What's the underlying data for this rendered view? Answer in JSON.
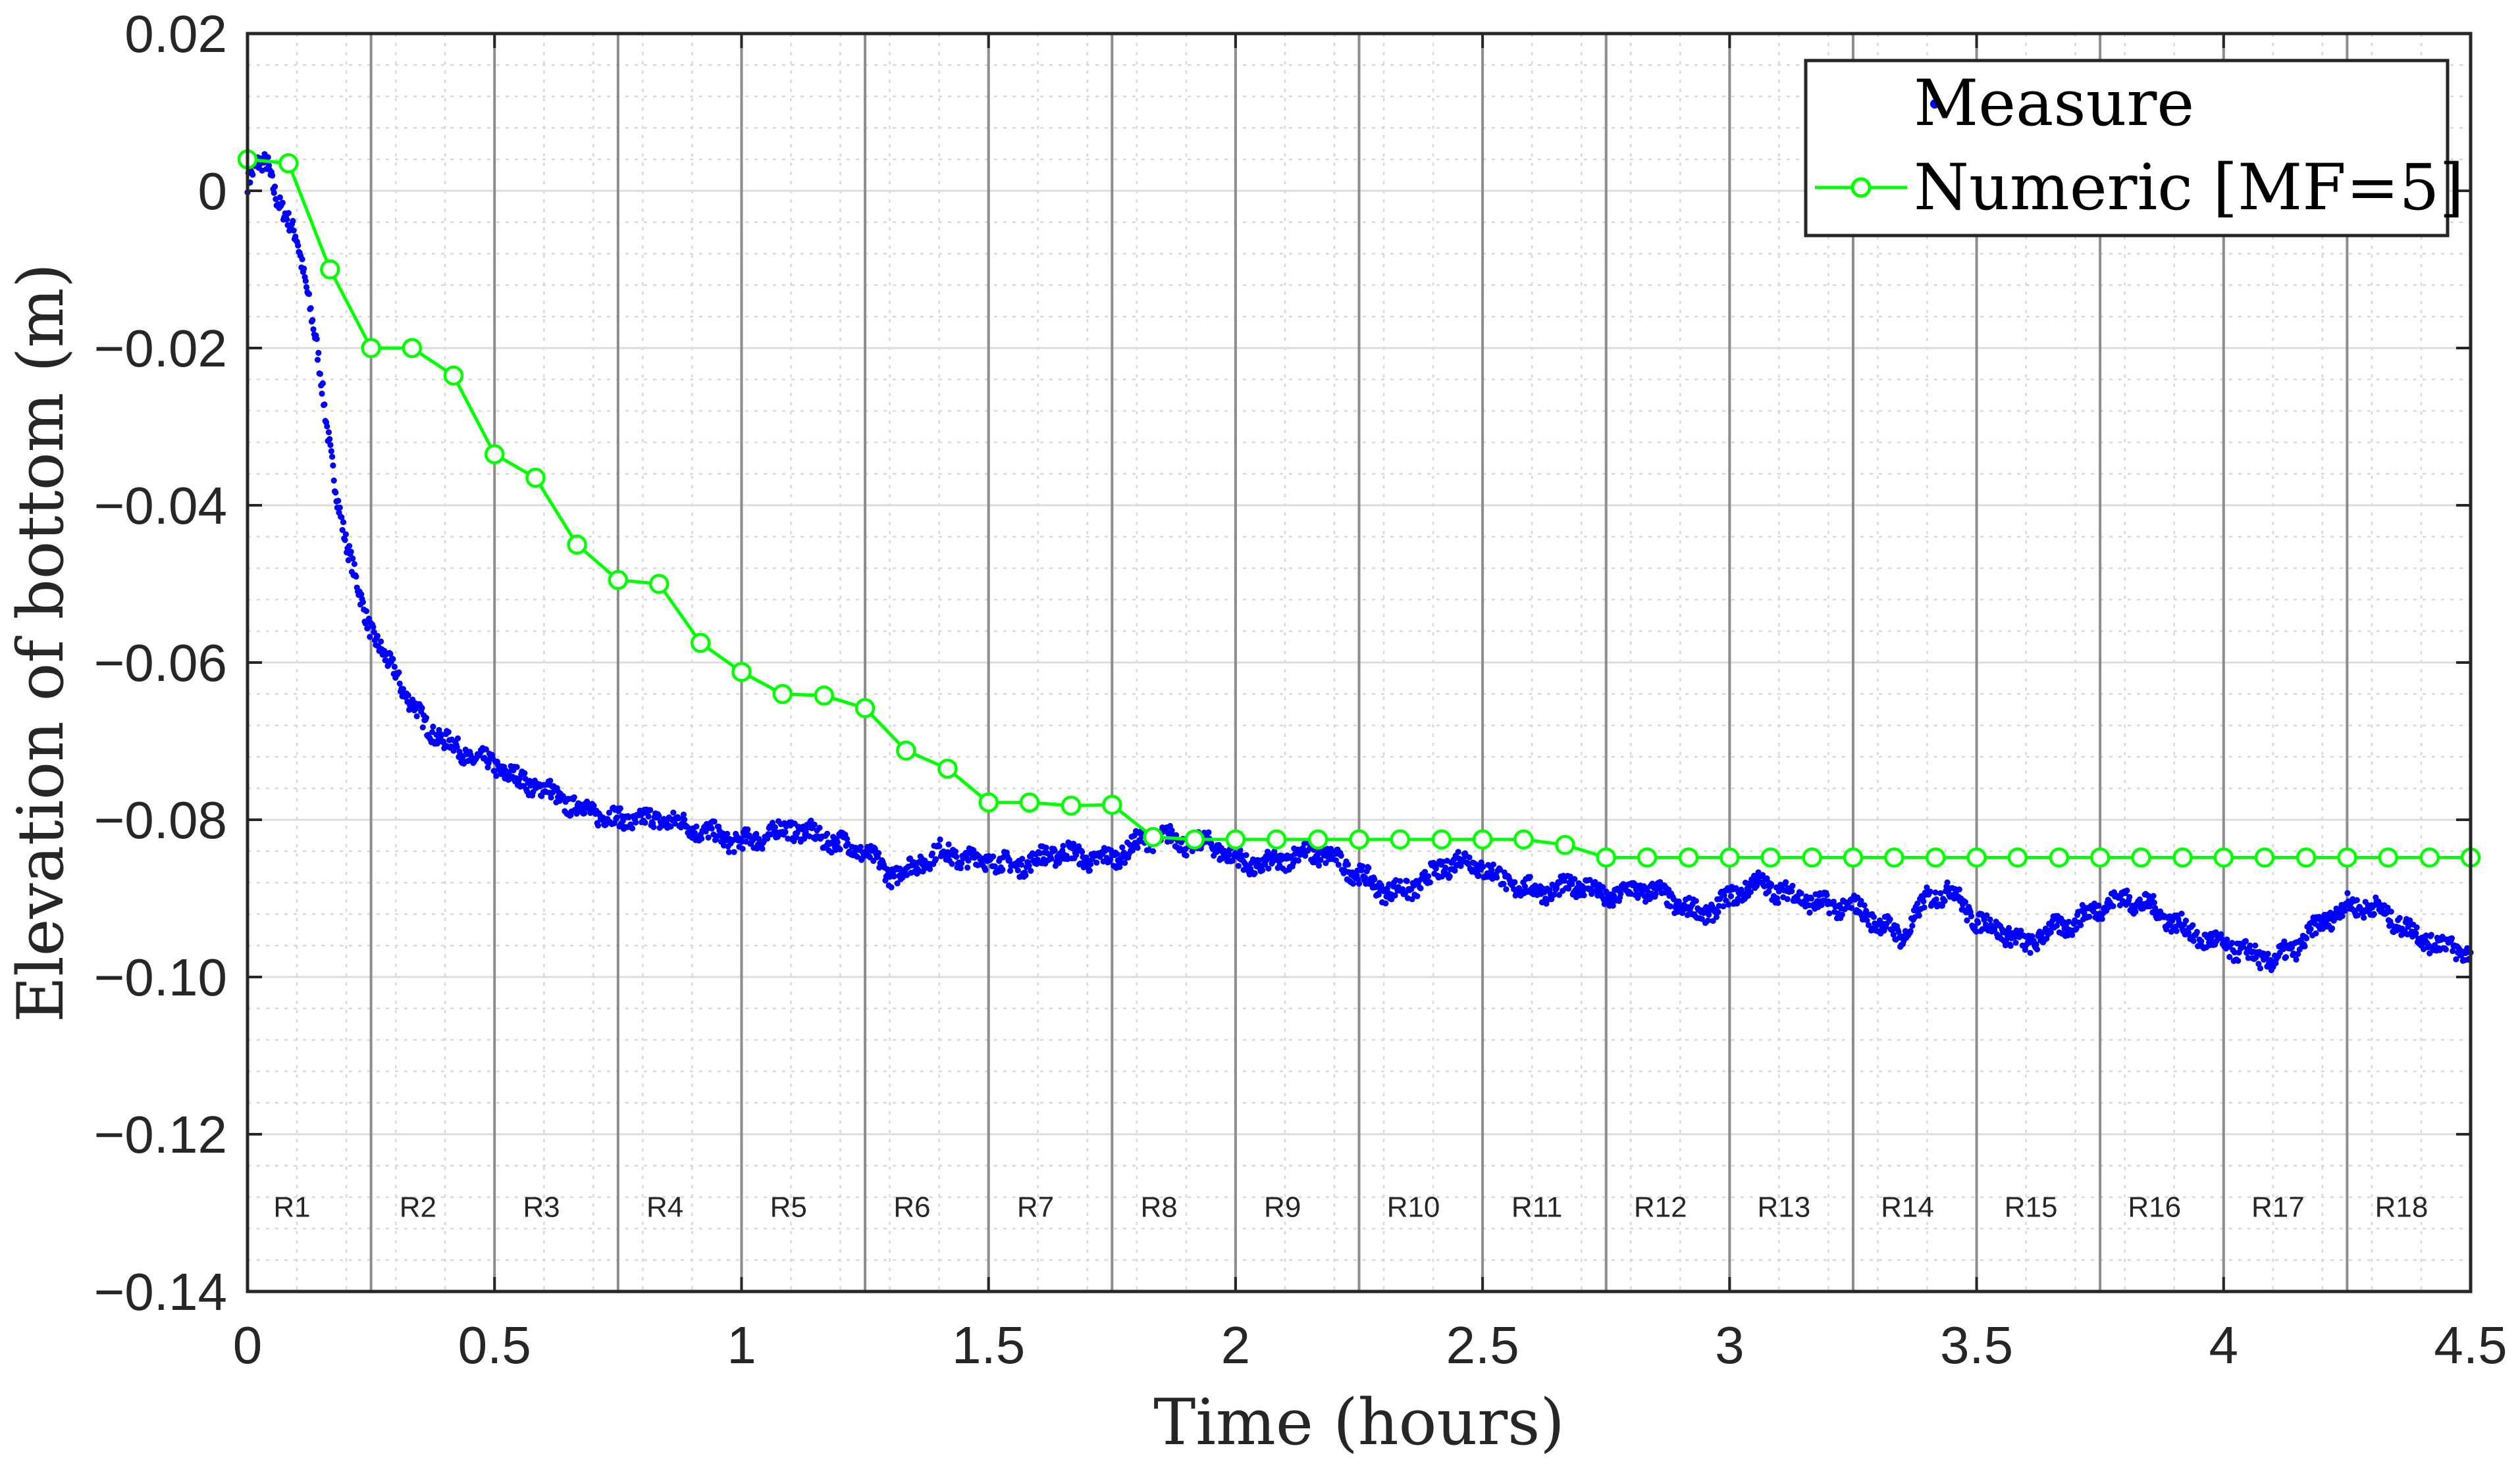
{
  "chart_data": {
    "type": "scatter",
    "title": "",
    "xlabel": "Time (hours)",
    "ylabel": "Elevation of bottom (m)",
    "xlim": [
      0,
      4.5
    ],
    "ylim": [
      -0.14,
      0.02
    ],
    "xticks": [
      0,
      0.5,
      1,
      1.5,
      2,
      2.5,
      3,
      3.5,
      4,
      4.5
    ],
    "xtick_labels": [
      "0",
      "0.5",
      "1",
      "1.5",
      "2",
      "2.5",
      "3",
      "3.5",
      "4",
      "4.5"
    ],
    "yticks": [
      0.02,
      0,
      -0.02,
      -0.04,
      -0.06,
      -0.08,
      -0.1,
      -0.12,
      -0.14
    ],
    "ytick_labels": [
      "0.02",
      "0",
      "−0.02",
      "−0.04",
      "−0.06",
      "−0.08",
      "−0.10",
      "−0.12",
      "−0.14"
    ],
    "grid": true,
    "minor_grid": true,
    "legend_position": "top-right",
    "run_boundaries": [
      0.25,
      0.5,
      0.75,
      1.0,
      1.25,
      1.5,
      1.75,
      2.0,
      2.25,
      2.5,
      2.75,
      3.0,
      3.25,
      3.5,
      3.75,
      4.0,
      4.25
    ],
    "run_labels": [
      {
        "label": "R1",
        "x": 0.09
      },
      {
        "label": "R2",
        "x": 0.345
      },
      {
        "label": "R3",
        "x": 0.595
      },
      {
        "label": "R4",
        "x": 0.845
      },
      {
        "label": "R5",
        "x": 1.095
      },
      {
        "label": "R6",
        "x": 1.345
      },
      {
        "label": "R7",
        "x": 1.595
      },
      {
        "label": "R8",
        "x": 1.845
      },
      {
        "label": "R9",
        "x": 2.095
      },
      {
        "label": "R10",
        "x": 2.36
      },
      {
        "label": "R11",
        "x": 2.61
      },
      {
        "label": "R12",
        "x": 2.86
      },
      {
        "label": "R13",
        "x": 3.11
      },
      {
        "label": "R14",
        "x": 3.36
      },
      {
        "label": "R15",
        "x": 3.61
      },
      {
        "label": "R16",
        "x": 3.86
      },
      {
        "label": "R17",
        "x": 4.11
      },
      {
        "label": "R18",
        "x": 4.36
      }
    ],
    "run_label_y": -0.1305,
    "series": [
      {
        "name": "Measure",
        "style": "dots",
        "color": "#0000ff",
        "x": [
          0.0,
          0.02,
          0.04,
          0.06,
          0.08,
          0.1,
          0.12,
          0.14,
          0.16,
          0.18,
          0.2,
          0.22,
          0.24,
          0.26,
          0.28,
          0.3,
          0.32,
          0.34,
          0.36,
          0.38,
          0.4,
          0.45,
          0.5,
          0.55,
          0.6,
          0.65,
          0.7,
          0.75,
          0.8,
          0.85,
          0.9,
          0.95,
          1.0,
          1.05,
          1.1,
          1.15,
          1.2,
          1.25,
          1.3,
          1.35,
          1.4,
          1.45,
          1.5,
          1.55,
          1.6,
          1.65,
          1.7,
          1.75,
          1.8,
          1.85,
          1.9,
          1.95,
          2.0,
          2.05,
          2.1,
          2.15,
          2.2,
          2.25,
          2.3,
          2.35,
          2.4,
          2.45,
          2.5,
          2.55,
          2.6,
          2.65,
          2.7,
          2.75,
          2.8,
          2.85,
          2.9,
          2.95,
          3.0,
          3.05,
          3.1,
          3.15,
          3.2,
          3.25,
          3.3,
          3.35,
          3.4,
          3.45,
          3.5,
          3.55,
          3.6,
          3.65,
          3.7,
          3.75,
          3.8,
          3.85,
          3.9,
          3.95,
          4.0,
          4.05,
          4.1,
          4.15,
          4.2,
          4.25,
          4.3,
          4.35,
          4.4,
          4.45,
          4.5
        ],
        "y": [
          0.001,
          0.003,
          0.004,
          -0.001,
          -0.004,
          -0.006,
          -0.012,
          -0.02,
          -0.03,
          -0.038,
          -0.045,
          -0.05,
          -0.054,
          -0.057,
          -0.06,
          -0.061,
          -0.064,
          -0.066,
          -0.068,
          -0.069,
          -0.07,
          -0.072,
          -0.073,
          -0.075,
          -0.076,
          -0.078,
          -0.079,
          -0.08,
          -0.08,
          -0.08,
          -0.081,
          -0.082,
          -0.083,
          -0.082,
          -0.081,
          -0.082,
          -0.083,
          -0.084,
          -0.087,
          -0.086,
          -0.084,
          -0.085,
          -0.085,
          -0.086,
          -0.085,
          -0.084,
          -0.085,
          -0.085,
          -0.083,
          -0.082,
          -0.083,
          -0.083,
          -0.085,
          -0.086,
          -0.085,
          -0.084,
          -0.085,
          -0.087,
          -0.089,
          -0.089,
          -0.087,
          -0.085,
          -0.086,
          -0.088,
          -0.089,
          -0.089,
          -0.088,
          -0.09,
          -0.089,
          -0.089,
          -0.091,
          -0.092,
          -0.09,
          -0.088,
          -0.089,
          -0.09,
          -0.091,
          -0.091,
          -0.093,
          -0.095,
          -0.09,
          -0.089,
          -0.093,
          -0.094,
          -0.096,
          -0.094,
          -0.093,
          -0.091,
          -0.09,
          -0.091,
          -0.093,
          -0.095,
          -0.096,
          -0.097,
          -0.098,
          -0.096,
          -0.093,
          -0.091,
          -0.091,
          -0.093,
          -0.095,
          -0.096,
          -0.097
        ]
      },
      {
        "name": "Numeric [MF=5]",
        "style": "line-circles",
        "color": "#00ff00",
        "x": [
          0.0,
          0.083,
          0.167,
          0.25,
          0.333,
          0.417,
          0.5,
          0.583,
          0.667,
          0.75,
          0.833,
          0.917,
          1.0,
          1.083,
          1.167,
          1.25,
          1.333,
          1.417,
          1.5,
          1.583,
          1.667,
          1.75,
          1.833,
          1.917,
          2.0,
          2.083,
          2.167,
          2.25,
          2.333,
          2.417,
          2.5,
          2.583,
          2.667,
          2.75,
          2.833,
          2.917,
          3.0,
          3.083,
          3.167,
          3.25,
          3.333,
          3.417,
          3.5,
          3.583,
          3.667,
          3.75,
          3.833,
          3.917,
          4.0,
          4.083,
          4.167,
          4.25,
          4.333,
          4.417,
          4.5
        ],
        "y": [
          0.004,
          0.0035,
          -0.01,
          -0.02,
          -0.02,
          -0.0235,
          -0.0335,
          -0.0365,
          -0.045,
          -0.0495,
          -0.05,
          -0.0575,
          -0.0612,
          -0.064,
          -0.0642,
          -0.0658,
          -0.0712,
          -0.0735,
          -0.0778,
          -0.0778,
          -0.0782,
          -0.0781,
          -0.0822,
          -0.0825,
          -0.0825,
          -0.0825,
          -0.0825,
          -0.0825,
          -0.0825,
          -0.0825,
          -0.0825,
          -0.0825,
          -0.0832,
          -0.0848,
          -0.0848,
          -0.0848,
          -0.0848,
          -0.0848,
          -0.0848,
          -0.0848,
          -0.0848,
          -0.0848,
          -0.0848,
          -0.0848,
          -0.0848,
          -0.0848,
          -0.0848,
          -0.0848,
          -0.0848,
          -0.0848,
          -0.0848,
          -0.0848,
          -0.0848,
          -0.0848,
          -0.0848
        ]
      }
    ]
  }
}
